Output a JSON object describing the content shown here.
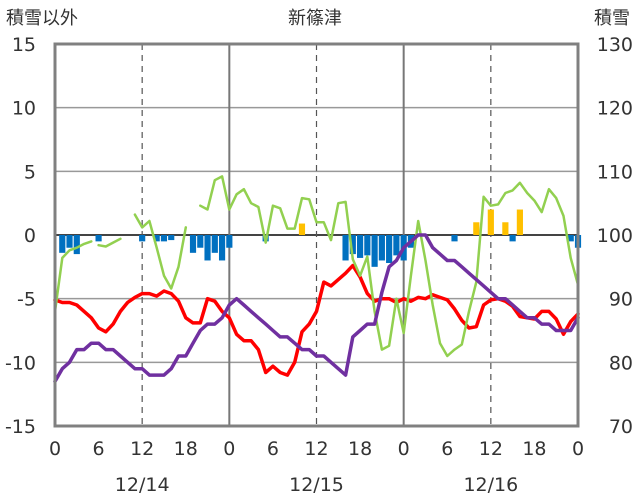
{
  "chart_data": {
    "type": "bar+line",
    "title": "新篠津",
    "left_axis_label": "積雪以外",
    "right_axis_label": "積雪",
    "left_ylim": [
      -15,
      15
    ],
    "left_yticks": [
      "15",
      "10",
      "5",
      "0",
      "-5",
      "-10",
      "-15"
    ],
    "right_ylim": [
      70,
      130
    ],
    "right_yticks": [
      "130",
      "120",
      "110",
      "100",
      "90",
      "80",
      "70"
    ],
    "x_range_hours": [
      0,
      72
    ],
    "x_ticks": [
      "0",
      "6",
      "12",
      "18",
      "0",
      "6",
      "12",
      "18",
      "0",
      "6",
      "12",
      "18",
      "0"
    ],
    "date_labels": [
      "12/14",
      "12/15",
      "12/16"
    ],
    "grid": "vertical dashed at 12:00, solid at 0:00",
    "colors": {
      "precip": "#0070C0",
      "melt": "#FFC000",
      "temperature": "#FF0000",
      "wind": "#92D050",
      "snow_depth": "#7030A0"
    },
    "series": [
      {
        "name": "",
        "color": "#0070C0",
        "kind": "bar",
        "axis": "left",
        "values": [
          [
            1,
            -1.4
          ],
          [
            2,
            -1.0
          ],
          [
            3,
            -1.5
          ],
          [
            6,
            -0.5
          ],
          [
            12,
            -0.5
          ],
          [
            14,
            -0.5
          ],
          [
            15,
            -0.5
          ],
          [
            16,
            -0.4
          ],
          [
            19,
            -1.4
          ],
          [
            20,
            -1.0
          ],
          [
            21,
            -2.0
          ],
          [
            22,
            -1.4
          ],
          [
            23,
            -2.0
          ],
          [
            24,
            -1.0
          ],
          [
            29,
            -0.5
          ],
          [
            40,
            -2.0
          ],
          [
            41,
            -1.5
          ],
          [
            42,
            -1.8
          ],
          [
            43,
            -1.6
          ],
          [
            44,
            -2.5
          ],
          [
            45,
            -2.0
          ],
          [
            46,
            -2.2
          ],
          [
            47,
            -1.6
          ],
          [
            48,
            -2.0
          ],
          [
            49,
            -1.0
          ],
          [
            55,
            -0.5
          ],
          [
            63,
            -0.5
          ],
          [
            71,
            -0.5
          ],
          [
            72,
            -1.0
          ]
        ]
      },
      {
        "name": "",
        "color": "#FFC000",
        "kind": "bar",
        "axis": "left",
        "values": [
          [
            34,
            0.9
          ],
          [
            58,
            1.0
          ],
          [
            60,
            2.0
          ],
          [
            62,
            1.0
          ],
          [
            64,
            2.0
          ]
        ]
      },
      {
        "name": "",
        "color": "#FF0000",
        "kind": "line",
        "axis": "left",
        "values": [
          [
            0,
            -5.1
          ],
          [
            1,
            -5.3
          ],
          [
            2,
            -5.3
          ],
          [
            3,
            -5.5
          ],
          [
            4,
            -6.0
          ],
          [
            5,
            -6.5
          ],
          [
            6,
            -7.3
          ],
          [
            7,
            -7.6
          ],
          [
            8,
            -7.0
          ],
          [
            9,
            -6.0
          ],
          [
            10,
            -5.3
          ],
          [
            11,
            -4.9
          ],
          [
            12,
            -4.6
          ],
          [
            13,
            -4.6
          ],
          [
            14,
            -4.8
          ],
          [
            15,
            -4.4
          ],
          [
            16,
            -4.6
          ],
          [
            17,
            -5.2
          ],
          [
            18,
            -6.5
          ],
          [
            19,
            -6.9
          ],
          [
            20,
            -6.9
          ],
          [
            21,
            -5.0
          ],
          [
            22,
            -5.2
          ],
          [
            23,
            -6.0
          ],
          [
            24,
            -6.5
          ],
          [
            25,
            -7.8
          ],
          [
            26,
            -8.3
          ],
          [
            27,
            -8.3
          ],
          [
            28,
            -9.0
          ],
          [
            29,
            -10.8
          ],
          [
            30,
            -10.3
          ],
          [
            31,
            -10.8
          ],
          [
            32,
            -11.0
          ],
          [
            33,
            -10.0
          ],
          [
            34,
            -7.6
          ],
          [
            35,
            -7.0
          ],
          [
            36,
            -6.0
          ],
          [
            37,
            -3.7
          ],
          [
            38,
            -4.0
          ],
          [
            39,
            -3.5
          ],
          [
            40,
            -3.0
          ],
          [
            41,
            -2.4
          ],
          [
            42,
            -3.3
          ],
          [
            43,
            -4.6
          ],
          [
            44,
            -5.2
          ],
          [
            45,
            -5.0
          ],
          [
            46,
            -5.0
          ],
          [
            47,
            -5.3
          ],
          [
            48,
            -5.0
          ],
          [
            49,
            -5.2
          ],
          [
            50,
            -4.9
          ],
          [
            51,
            -5.0
          ],
          [
            52,
            -4.7
          ],
          [
            53,
            -4.9
          ],
          [
            54,
            -5.1
          ],
          [
            55,
            -5.8
          ],
          [
            56,
            -6.7
          ],
          [
            57,
            -7.3
          ],
          [
            58,
            -7.2
          ],
          [
            59,
            -5.5
          ],
          [
            60,
            -5.1
          ],
          [
            61,
            -5.0
          ],
          [
            62,
            -5.2
          ],
          [
            63,
            -5.6
          ],
          [
            64,
            -6.4
          ],
          [
            65,
            -6.5
          ],
          [
            66,
            -6.6
          ],
          [
            67,
            -6.0
          ],
          [
            68,
            -6.0
          ],
          [
            69,
            -6.6
          ],
          [
            70,
            -7.8
          ],
          [
            71,
            -6.8
          ],
          [
            72,
            -6.2
          ]
        ]
      },
      {
        "name": "",
        "color": "#92D050",
        "kind": "line",
        "axis": "left",
        "segments": [
          [
            [
              0,
              -6.0
            ],
            [
              1,
              -1.8
            ],
            [
              2,
              -1.2
            ],
            [
              3,
              -1.0
            ],
            [
              4,
              -0.7
            ],
            [
              5,
              -0.5
            ]
          ],
          [
            [
              6,
              -0.8
            ],
            [
              7,
              -0.9
            ],
            [
              8,
              -0.6
            ],
            [
              9,
              -0.3
            ]
          ],
          [
            [
              11,
              1.6
            ],
            [
              12,
              0.6
            ],
            [
              13,
              1.1
            ],
            [
              14,
              -1.0
            ],
            [
              15,
              -3.2
            ],
            [
              16,
              -4.2
            ],
            [
              17,
              -2.5
            ],
            [
              18,
              0.6
            ]
          ],
          [
            [
              20,
              2.3
            ],
            [
              21,
              2.0
            ],
            [
              22,
              4.3
            ],
            [
              23,
              4.6
            ],
            [
              24,
              2.0
            ],
            [
              25,
              3.2
            ],
            [
              26,
              3.6
            ],
            [
              27,
              2.5
            ],
            [
              28,
              2.2
            ],
            [
              29,
              -0.6
            ],
            [
              30,
              2.3
            ],
            [
              31,
              2.1
            ],
            [
              32,
              0.5
            ],
            [
              33,
              0.5
            ],
            [
              34,
              2.9
            ],
            [
              35,
              2.8
            ],
            [
              36,
              1.0
            ],
            [
              37,
              1.0
            ],
            [
              38,
              -0.4
            ],
            [
              39,
              2.5
            ],
            [
              40,
              2.6
            ],
            [
              41,
              -1.9
            ],
            [
              42,
              -3.2
            ],
            [
              43,
              -1.7
            ],
            [
              44,
              -6.0
            ],
            [
              45,
              -9.0
            ],
            [
              46,
              -8.7
            ],
            [
              47,
              -5.0
            ],
            [
              48,
              -7.7
            ],
            [
              49,
              -3.2
            ],
            [
              50,
              1.1
            ],
            [
              51,
              -2.0
            ],
            [
              52,
              -5.5
            ],
            [
              53,
              -8.5
            ],
            [
              54,
              -9.5
            ],
            [
              55,
              -9.0
            ],
            [
              56,
              -8.6
            ],
            [
              57,
              -6.0
            ],
            [
              58,
              -3.7
            ],
            [
              59,
              3.0
            ],
            [
              60,
              2.3
            ],
            [
              61,
              2.4
            ],
            [
              62,
              3.3
            ],
            [
              63,
              3.5
            ],
            [
              64,
              4.1
            ],
            [
              65,
              3.3
            ],
            [
              66,
              2.7
            ],
            [
              67,
              1.8
            ],
            [
              68,
              3.6
            ],
            [
              69,
              2.9
            ],
            [
              70,
              1.5
            ],
            [
              71,
              -1.8
            ],
            [
              72,
              -3.9
            ]
          ]
        ]
      },
      {
        "name": "",
        "color": "#7030A0",
        "kind": "line",
        "axis": "right",
        "values": [
          [
            0,
            77
          ],
          [
            1,
            79
          ],
          [
            2,
            80
          ],
          [
            3,
            82
          ],
          [
            4,
            82
          ],
          [
            5,
            83
          ],
          [
            6,
            83
          ],
          [
            7,
            82
          ],
          [
            8,
            82
          ],
          [
            9,
            81
          ],
          [
            10,
            80
          ],
          [
            11,
            79
          ],
          [
            12,
            79
          ],
          [
            13,
            78
          ],
          [
            14,
            78
          ],
          [
            15,
            78
          ],
          [
            16,
            79
          ],
          [
            17,
            81
          ],
          [
            18,
            81
          ],
          [
            19,
            83
          ],
          [
            20,
            85
          ],
          [
            21,
            86
          ],
          [
            22,
            86
          ],
          [
            23,
            87
          ],
          [
            24,
            89
          ],
          [
            25,
            90
          ],
          [
            26,
            89
          ],
          [
            27,
            88
          ],
          [
            28,
            87
          ],
          [
            29,
            86
          ],
          [
            30,
            85
          ],
          [
            31,
            84
          ],
          [
            32,
            84
          ],
          [
            33,
            83
          ],
          [
            34,
            82
          ],
          [
            35,
            82
          ],
          [
            36,
            81
          ],
          [
            37,
            81
          ],
          [
            38,
            80
          ],
          [
            39,
            79
          ],
          [
            40,
            78
          ],
          [
            41,
            84
          ],
          [
            42,
            85
          ],
          [
            43,
            86
          ],
          [
            44,
            86
          ],
          [
            45,
            91
          ],
          [
            46,
            95
          ],
          [
            47,
            96
          ],
          [
            48,
            98
          ],
          [
            49,
            99
          ],
          [
            50,
            100
          ],
          [
            51,
            100
          ],
          [
            52,
            98
          ],
          [
            53,
            97
          ],
          [
            54,
            96
          ],
          [
            55,
            96
          ],
          [
            56,
            95
          ],
          [
            57,
            94
          ],
          [
            58,
            93
          ],
          [
            59,
            92
          ],
          [
            60,
            91
          ],
          [
            61,
            90
          ],
          [
            62,
            90
          ],
          [
            63,
            89
          ],
          [
            64,
            88
          ],
          [
            65,
            87
          ],
          [
            66,
            87
          ],
          [
            67,
            86
          ],
          [
            68,
            86
          ],
          [
            69,
            85
          ],
          [
            70,
            85
          ],
          [
            71,
            85
          ],
          [
            72,
            87
          ]
        ]
      }
    ]
  }
}
